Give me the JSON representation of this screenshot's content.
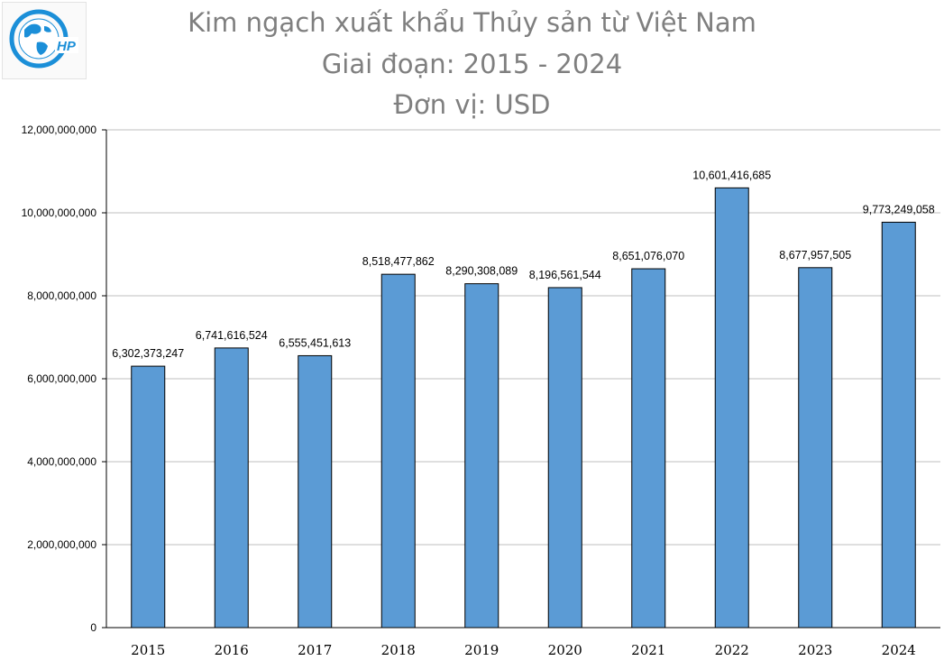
{
  "logo": {
    "text": "HP",
    "colors": {
      "globe": "#1b8fd8",
      "ring": "#1b8fd8"
    }
  },
  "title": {
    "line1": "Kim ngạch xuất khẩu Thủy sản từ Việt Nam",
    "line2": "Giai đoạn: 2015 - 2024",
    "line3": "Đơn vị: USD"
  },
  "chart_data": {
    "type": "bar",
    "title": "Kim ngạch xuất khẩu Thủy sản từ Việt Nam",
    "subtitle": "Giai đoạn: 2015 - 2024 / Đơn vị: USD",
    "xlabel": "",
    "ylabel": "",
    "categories": [
      "2015",
      "2016",
      "2017",
      "2018",
      "2019",
      "2020",
      "2021",
      "2022",
      "2023",
      "2024"
    ],
    "values": [
      6302373247,
      6741616524,
      6555451613,
      8518477862,
      8290308089,
      8196561544,
      8651076070,
      10601416685,
      8677957505,
      9773249058
    ],
    "value_labels": [
      "6,302,373,247",
      "6,741,616,524",
      "6,555,451,613",
      "8,518,477,862",
      "8,290,308,089",
      "8,196,561,544",
      "8,651,076,070",
      "10,601,416,685",
      "8,677,957,505",
      "9,773,249,058"
    ],
    "y_ticks": [
      0,
      2000000000,
      4000000000,
      6000000000,
      8000000000,
      10000000000,
      12000000000
    ],
    "y_tick_labels": [
      "0",
      "2,000,000,000",
      "4,000,000,000",
      "6,000,000,000",
      "8,000,000,000",
      "10,000,000,000",
      "12,000,000,000"
    ],
    "ylim": [
      0,
      12000000000
    ],
    "grid": true,
    "legend": "none",
    "colors": {
      "bar": "#5b9bd5",
      "bar_border": "#000000",
      "grid": "#bfbfbf"
    }
  }
}
